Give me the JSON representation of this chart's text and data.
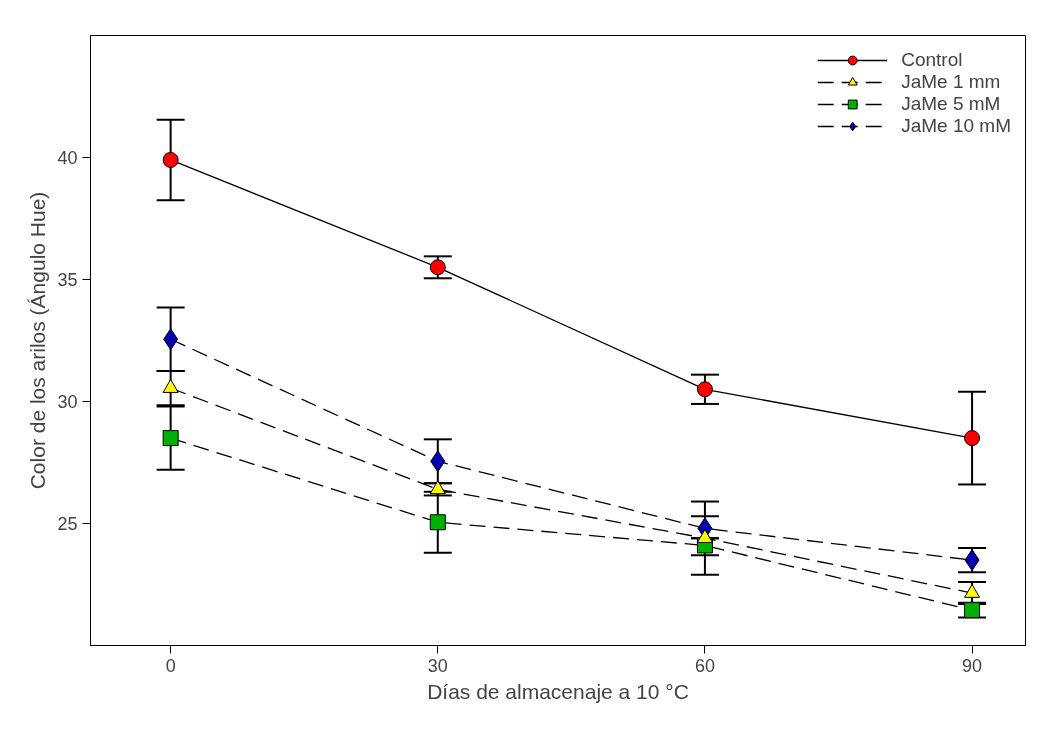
{
  "chart_data": {
    "type": "line",
    "xlabel": "Días de almacenaje a 10 °C",
    "ylabel": "Color de los arilos (Ángulo Hue)",
    "x": [
      0,
      30,
      60,
      90
    ],
    "xlim": [
      -9,
      96
    ],
    "xticks": [
      0,
      30,
      60,
      90
    ],
    "ylim": [
      20,
      45
    ],
    "yticks": [
      25,
      30,
      35,
      40
    ],
    "grid": false,
    "legend": "top right",
    "series": [
      {
        "name": "Control",
        "color": "#ff0000",
        "marker": "circle",
        "line_style": "solid",
        "values": [
          39.9,
          35.5,
          30.5,
          28.5
        ],
        "errors": [
          1.65,
          0.45,
          0.6,
          1.9
        ]
      },
      {
        "name": "JaMe 1 mm",
        "color": "#ffff00",
        "marker": "triangle",
        "line_style": "dashed",
        "values": [
          30.55,
          26.4,
          24.4,
          22.15
        ],
        "errors": [
          0.7,
          0.25,
          null,
          0.45
        ]
      },
      {
        "name": "JaMe 5 mM",
        "color": "#00b000",
        "marker": "square",
        "line_style": "dashed",
        "values": [
          28.5,
          25.05,
          24.1,
          21.45
        ],
        "errors": [
          1.3,
          1.25,
          1.2,
          0.3
        ]
      },
      {
        "name": "JaMe 10 mM",
        "color": "#0000b0",
        "marker": "diamond",
        "line_style": "dashed",
        "values": [
          32.55,
          27.55,
          24.8,
          23.5
        ],
        "errors": [
          1.3,
          0.9,
          1.1,
          0.5
        ]
      }
    ]
  }
}
